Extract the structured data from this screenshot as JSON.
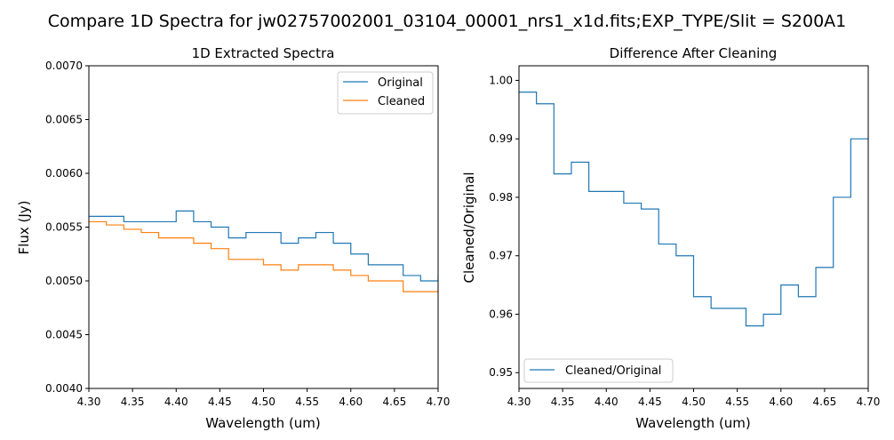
{
  "figure": {
    "suptitle": "Compare 1D Spectra for jw02757002001_03104_00001_nrs1_x1d.fits;EXP_TYPE/Slit = S200A1"
  },
  "chart_data": [
    {
      "type": "line",
      "drawstyle": "steps",
      "title": "1D Extracted Spectra",
      "xlabel": "Wavelength (um)",
      "ylabel": "Flux (Jy)",
      "xlim": [
        4.3,
        4.7
      ],
      "ylim": [
        0.004,
        0.007
      ],
      "xticks": [
        "4.30",
        "4.35",
        "4.40",
        "4.45",
        "4.50",
        "4.55",
        "4.60",
        "4.65",
        "4.70"
      ],
      "yticks": [
        "0.0040",
        "0.0045",
        "0.0050",
        "0.0055",
        "0.0060",
        "0.0065",
        "0.0070"
      ],
      "grid": false,
      "legend": "top-right",
      "series": [
        {
          "name": "Original",
          "color": "#1f77b4",
          "x": [
            4.3,
            4.32,
            4.34,
            4.36,
            4.38,
            4.4,
            4.42,
            4.44,
            4.46,
            4.48,
            4.5,
            4.52,
            4.54,
            4.56,
            4.58,
            4.6,
            4.62,
            4.64,
            4.66,
            4.68,
            4.7
          ],
          "y": [
            0.0056,
            0.0056,
            0.00555,
            0.00555,
            0.00555,
            0.00565,
            0.00555,
            0.0055,
            0.0054,
            0.00545,
            0.00545,
            0.00535,
            0.0054,
            0.00545,
            0.00535,
            0.00525,
            0.00515,
            0.00515,
            0.00505,
            0.005,
            0.00505
          ]
        },
        {
          "name": "Cleaned",
          "color": "#ff7f0e",
          "x": [
            4.3,
            4.32,
            4.34,
            4.36,
            4.38,
            4.4,
            4.42,
            4.44,
            4.46,
            4.48,
            4.5,
            4.52,
            4.54,
            4.56,
            4.58,
            4.6,
            4.62,
            4.64,
            4.66,
            4.68,
            4.7
          ],
          "y": [
            0.00555,
            0.00552,
            0.00548,
            0.00545,
            0.0054,
            0.0054,
            0.00535,
            0.0053,
            0.0052,
            0.0052,
            0.00515,
            0.0051,
            0.00515,
            0.00515,
            0.0051,
            0.00505,
            0.005,
            0.005,
            0.0049,
            0.0049,
            0.00495
          ]
        }
      ]
    },
    {
      "type": "line",
      "drawstyle": "steps",
      "title": "Difference After Cleaning",
      "xlabel": "Wavelength (um)",
      "ylabel": "Cleaned/Original",
      "xlim": [
        4.3,
        4.7
      ],
      "ylim": [
        0.9473,
        1.0025
      ],
      "xticks": [
        "4.30",
        "4.35",
        "4.40",
        "4.45",
        "4.50",
        "4.55",
        "4.60",
        "4.65",
        "4.70"
      ],
      "yticks": [
        "0.95",
        "0.96",
        "0.97",
        "0.98",
        "0.99",
        "1.00"
      ],
      "grid": false,
      "legend": "bottom-left",
      "series": [
        {
          "name": "Cleaned/Original",
          "color": "#1f77b4",
          "x": [
            4.3,
            4.32,
            4.34,
            4.36,
            4.38,
            4.4,
            4.42,
            4.44,
            4.46,
            4.48,
            4.5,
            4.52,
            4.54,
            4.56,
            4.58,
            4.6,
            4.62,
            4.64,
            4.66,
            4.68,
            4.7
          ],
          "y": [
            0.998,
            0.996,
            0.984,
            0.986,
            0.981,
            0.981,
            0.979,
            0.978,
            0.972,
            0.97,
            0.963,
            0.961,
            0.961,
            0.958,
            0.96,
            0.965,
            0.963,
            0.968,
            0.98,
            0.99,
            0.99
          ]
        }
      ]
    }
  ]
}
